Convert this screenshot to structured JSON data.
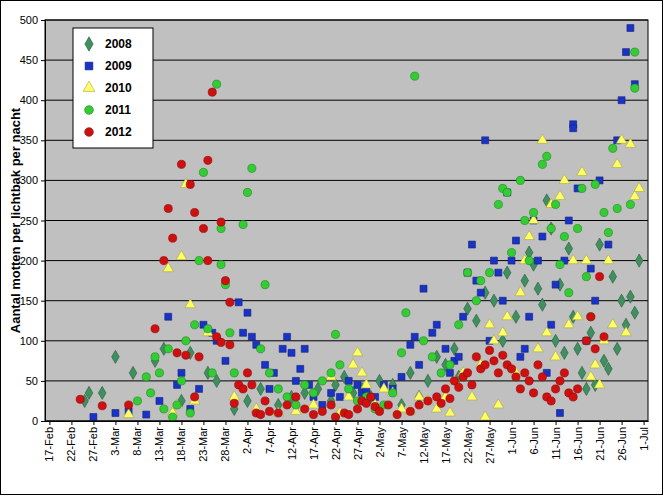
{
  "chart_data": {
    "type": "scatter",
    "y_label": "Aantal motten per lichtbak per nacht",
    "xlim": [
      47,
      184
    ],
    "xticks": [
      {
        "value": 48,
        "label": "17-Feb"
      },
      {
        "value": 53,
        "label": "22-Feb"
      },
      {
        "value": 58,
        "label": "27-Feb"
      },
      {
        "value": 63,
        "label": "3-Mar"
      },
      {
        "value": 68,
        "label": "8-Mar"
      },
      {
        "value": 73,
        "label": "13-Mar"
      },
      {
        "value": 78,
        "label": "18-Mar"
      },
      {
        "value": 83,
        "label": "23-Mar"
      },
      {
        "value": 88,
        "label": "28-Mar"
      },
      {
        "value": 93,
        "label": "2-Apr"
      },
      {
        "value": 98,
        "label": "7-Apr"
      },
      {
        "value": 103,
        "label": "12-Apr"
      },
      {
        "value": 108,
        "label": "17-Apr"
      },
      {
        "value": 113,
        "label": "22-Apr"
      },
      {
        "value": 118,
        "label": "27-Apr"
      },
      {
        "value": 123,
        "label": "2-May"
      },
      {
        "value": 128,
        "label": "7-May"
      },
      {
        "value": 133,
        "label": "12-May"
      },
      {
        "value": 138,
        "label": "17-May"
      },
      {
        "value": 143,
        "label": "22-May"
      },
      {
        "value": 148,
        "label": "27-May"
      },
      {
        "value": 153,
        "label": "1-Jun"
      },
      {
        "value": 158,
        "label": "6-Jun"
      },
      {
        "value": 163,
        "label": "11-Jun"
      },
      {
        "value": 168,
        "label": "16-Jun"
      },
      {
        "value": 173,
        "label": "21-Jun"
      },
      {
        "value": 178,
        "label": "26-Jun"
      },
      {
        "value": 183,
        "label": "1-Jul"
      }
    ],
    "ylim": [
      0,
      500
    ],
    "yticks": [
      0,
      50,
      100,
      150,
      200,
      250,
      300,
      350,
      400,
      450,
      500
    ],
    "grid": true,
    "legend": "top-left",
    "series": [
      {
        "name": "2008",
        "color": "#3f8f5f",
        "marker": "diamond",
        "x": [
          56,
          57,
          60,
          63,
          67,
          72,
          74,
          78,
          80,
          84,
          86,
          90,
          93,
          96,
          100,
          103,
          106,
          109,
          112,
          113,
          115,
          117,
          119,
          121,
          123,
          126,
          128,
          130,
          132,
          134,
          136,
          138,
          140,
          141,
          143,
          145,
          147,
          149,
          151,
          152,
          154,
          156,
          157,
          158,
          159,
          160,
          161,
          162,
          163,
          164,
          165,
          166,
          167,
          168,
          169,
          170,
          171,
          172,
          173,
          174,
          175,
          176,
          177,
          178,
          179,
          180,
          181,
          182
        ],
        "values": [
          25,
          35,
          35,
          80,
          60,
          75,
          90,
          25,
          85,
          60,
          50,
          15,
          25,
          40,
          20,
          30,
          35,
          40,
          25,
          45,
          55,
          35,
          40,
          30,
          50,
          45,
          20,
          60,
          30,
          50,
          80,
          70,
          90,
          55,
          140,
          125,
          160,
          150,
          100,
          185,
          130,
          175,
          210,
          195,
          165,
          145,
          275,
          240,
          100,
          170,
          85,
          215,
          130,
          90,
          60,
          40,
          110,
          45,
          220,
          75,
          65,
          180,
          90,
          150,
          120,
          155,
          135,
          200
        ]
      },
      {
        "name": "2009",
        "color": "#1a33c4",
        "marker": "square",
        "x": [
          58,
          63,
          66,
          70,
          73,
          75,
          77,
          78,
          80,
          82,
          83,
          85,
          86,
          88,
          91,
          92,
          93,
          94,
          95,
          97,
          98,
          99,
          101,
          102,
          103,
          104,
          105,
          106,
          107,
          108,
          110,
          112,
          114,
          116,
          118,
          119,
          120,
          122,
          124,
          126,
          128,
          130,
          131,
          132,
          133,
          135,
          136,
          138,
          139,
          140,
          141,
          142,
          143,
          144,
          145,
          146,
          147,
          148,
          149,
          150,
          151,
          152,
          153,
          154,
          155,
          156,
          157,
          158,
          159,
          160,
          161,
          162,
          163,
          164,
          165,
          166,
          167,
          167,
          168,
          170,
          171,
          172,
          173,
          175,
          177,
          178,
          179,
          180,
          181
        ],
        "values": [
          5,
          10,
          12,
          8,
          25,
          130,
          45,
          60,
          15,
          40,
          120,
          110,
          100,
          75,
          148,
          110,
          135,
          105,
          95,
          70,
          40,
          60,
          90,
          105,
          85,
          50,
          65,
          90,
          45,
          30,
          20,
          35,
          30,
          50,
          45,
          35,
          40,
          30,
          45,
          40,
          55,
          95,
          105,
          70,
          165,
          110,
          120,
          90,
          60,
          75,
          80,
          130,
          185,
          220,
          175,
          160,
          350,
          100,
          200,
          185,
          150,
          285,
          200,
          225,
          80,
          90,
          130,
          250,
          200,
          230,
          60,
          120,
          170,
          10,
          200,
          250,
          370,
          365,
          290,
          100,
          190,
          150,
          300,
          220,
          350,
          400,
          460,
          490,
          420
        ]
      },
      {
        "name": "2010",
        "color": "#ffff66",
        "marker": "triangle",
        "x": [
          66,
          75,
          76,
          77,
          78,
          79,
          80,
          81,
          84,
          90,
          95,
          100,
          104,
          108,
          112,
          114,
          116,
          117,
          118,
          119,
          120,
          122,
          124,
          126,
          128,
          130,
          132,
          134,
          136,
          138,
          139,
          140,
          142,
          144,
          146,
          147,
          148,
          149,
          150,
          151,
          152,
          154,
          155,
          156,
          157,
          158,
          159,
          160,
          161,
          162,
          163,
          164,
          165,
          166,
          167,
          168,
          169,
          170,
          171,
          172,
          173,
          174,
          175,
          176,
          177,
          178,
          179,
          180,
          181,
          182
        ],
        "values": [
          8,
          190,
          10,
          20,
          205,
          295,
          145,
          25,
          110,
          30,
          15,
          10,
          12,
          20,
          55,
          10,
          30,
          70,
          85,
          60,
          45,
          20,
          40,
          35,
          15,
          12,
          30,
          25,
          15,
          30,
          10,
          50,
          60,
          30,
          70,
          5,
          120,
          100,
          20,
          110,
          130,
          60,
          160,
          200,
          230,
          250,
          90,
          350,
          110,
          270,
          80,
          280,
          300,
          120,
          200,
          130,
          310,
          200,
          55,
          70,
          45,
          100,
          200,
          120,
          320,
          350,
          110,
          345,
          280,
          290
        ]
      },
      {
        "name": "2011",
        "color": "#33cc33",
        "marker": "circle",
        "x": [
          68,
          70,
          71,
          72,
          73,
          74,
          75,
          76,
          77,
          78,
          79,
          80,
          81,
          82,
          83,
          84,
          85,
          86,
          87,
          87,
          88,
          89,
          90,
          92,
          93,
          94,
          96,
          97,
          98,
          100,
          102,
          104,
          106,
          108,
          110,
          112,
          113,
          114,
          116,
          118,
          120,
          122,
          124,
          126,
          128,
          129,
          131,
          133,
          135,
          137,
          139,
          141,
          143,
          145,
          146,
          148,
          150,
          151,
          152,
          153,
          155,
          156,
          157,
          158,
          160,
          161,
          162,
          163,
          164,
          165,
          166,
          168,
          169,
          170,
          171,
          172,
          174,
          175,
          176,
          177,
          180,
          181,
          181
        ],
        "values": [
          25,
          55,
          35,
          80,
          60,
          15,
          90,
          5,
          20,
          50,
          100,
          10,
          120,
          200,
          310,
          115,
          60,
          420,
          240,
          195,
          170,
          110,
          60,
          245,
          285,
          315,
          90,
          170,
          60,
          40,
          30,
          20,
          45,
          35,
          50,
          60,
          108,
          70,
          40,
          25,
          30,
          15,
          20,
          35,
          85,
          135,
          430,
          100,
          80,
          60,
          70,
          120,
          185,
          150,
          175,
          185,
          270,
          290,
          285,
          210,
          300,
          250,
          200,
          260,
          320,
          330,
          240,
          270,
          195,
          230,
          160,
          240,
          290,
          180,
          130,
          295,
          260,
          235,
          340,
          265,
          270,
          460,
          415
        ]
      },
      {
        "name": "2012",
        "color": "#d01010",
        "marker": "circle",
        "x": [
          55,
          60,
          66,
          72,
          74,
          75,
          76,
          77,
          78,
          79,
          80,
          81,
          81,
          82,
          83,
          84,
          84,
          85,
          86,
          87,
          87,
          88,
          89,
          89,
          90,
          91,
          92,
          93,
          94,
          95,
          96,
          97,
          98,
          100,
          102,
          104,
          106,
          108,
          110,
          112,
          113,
          115,
          116,
          118,
          119,
          120,
          121,
          122,
          123,
          125,
          127,
          130,
          132,
          134,
          136,
          137,
          138,
          139,
          140,
          141,
          142,
          143,
          144,
          145,
          146,
          147,
          148,
          149,
          150,
          151,
          152,
          153,
          154,
          155,
          156,
          157,
          158,
          159,
          160,
          161,
          162,
          163,
          164,
          165,
          166,
          167,
          168,
          170,
          171,
          172,
          173,
          174
        ],
        "values": [
          27,
          19,
          20,
          115,
          200,
          265,
          228,
          85,
          320,
          82,
          295,
          30,
          260,
          80,
          240,
          325,
          200,
          410,
          105,
          248,
          98,
          175,
          95,
          148,
          22,
          45,
          40,
          60,
          45,
          10,
          8,
          25,
          12,
          10,
          20,
          30,
          15,
          8,
          12,
          20,
          5,
          10,
          8,
          15,
          25,
          22,
          30,
          18,
          12,
          20,
          8,
          12,
          20,
          25,
          30,
          22,
          40,
          28,
          50,
          42,
          55,
          60,
          45,
          80,
          65,
          70,
          88,
          75,
          60,
          82,
          70,
          65,
          55,
          40,
          60,
          50,
          35,
          70,
          55,
          30,
          25,
          40,
          50,
          60,
          35,
          30,
          40,
          100,
          130,
          90,
          180,
          105
        ]
      }
    ]
  }
}
